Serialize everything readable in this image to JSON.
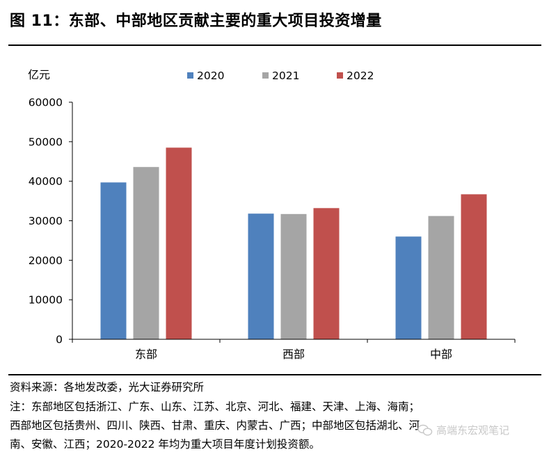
{
  "title": "图 11：东部、中部地区贡献主要的重大项目投资增量",
  "source": "资料来源：各地发改委，光大证券研究所",
  "notes": [
    "注：东部地区包括浙江、广东、山东、江苏、北京、河北、福建、天津、上海、海南；",
    "西部地区包括贵州、四川、陕西、甘肃、重庆、内蒙古、广西；中部地区包括湖北、河",
    "南、安徽、江西；2020-2022 年均为重大项目年度计划投资额。"
  ],
  "watermark": "高端东宏观笔记",
  "colors": {
    "2020": "#4f81bd",
    "2021": "#a5a5a5",
    "2022": "#c0504d"
  },
  "chart_data": {
    "type": "bar",
    "title": "",
    "ylabel": "亿元",
    "ylim": [
      0,
      60000
    ],
    "yticks": [
      0,
      10000,
      20000,
      30000,
      40000,
      50000,
      60000
    ],
    "categories": [
      "东部",
      "西部",
      "中部"
    ],
    "legend_position": "top",
    "grid": false,
    "series": [
      {
        "name": "2020",
        "color": "#4f81bd",
        "values": [
          39700,
          31800,
          26000
        ]
      },
      {
        "name": "2021",
        "color": "#a5a5a5",
        "values": [
          43600,
          31700,
          31200
        ]
      },
      {
        "name": "2022",
        "color": "#c0504d",
        "values": [
          48500,
          33200,
          36700
        ]
      }
    ]
  }
}
